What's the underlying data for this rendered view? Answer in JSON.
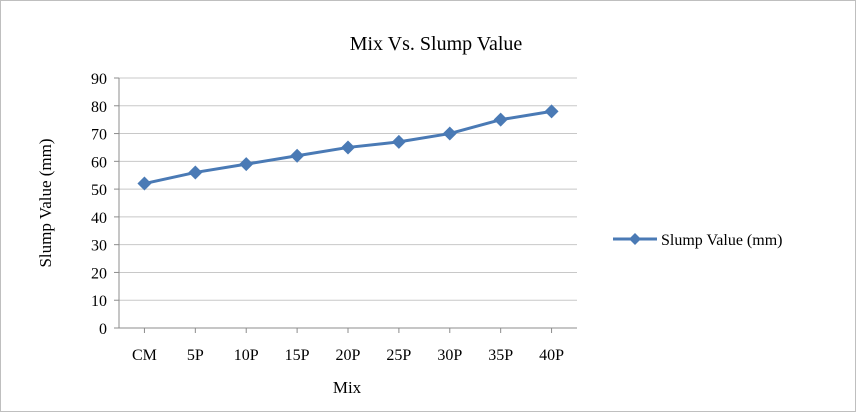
{
  "chart_data": {
    "type": "line",
    "title": "Mix Vs. Slump Value",
    "xlabel": "Mix",
    "ylabel": "Slump Value (mm)",
    "categories": [
      "CM",
      "5P",
      "10P",
      "15P",
      "20P",
      "25P",
      "30P",
      "35P",
      "40P"
    ],
    "series": [
      {
        "name": "Slump Value (mm)",
        "values": [
          52,
          56,
          59,
          62,
          65,
          67,
          70,
          75,
          78
        ],
        "color": "#4a7ab5"
      }
    ],
    "ylim": [
      0,
      90
    ],
    "yticks": [
      0,
      10,
      20,
      30,
      40,
      50,
      60,
      70,
      80,
      90
    ],
    "grid": true,
    "legend_position": "right"
  }
}
